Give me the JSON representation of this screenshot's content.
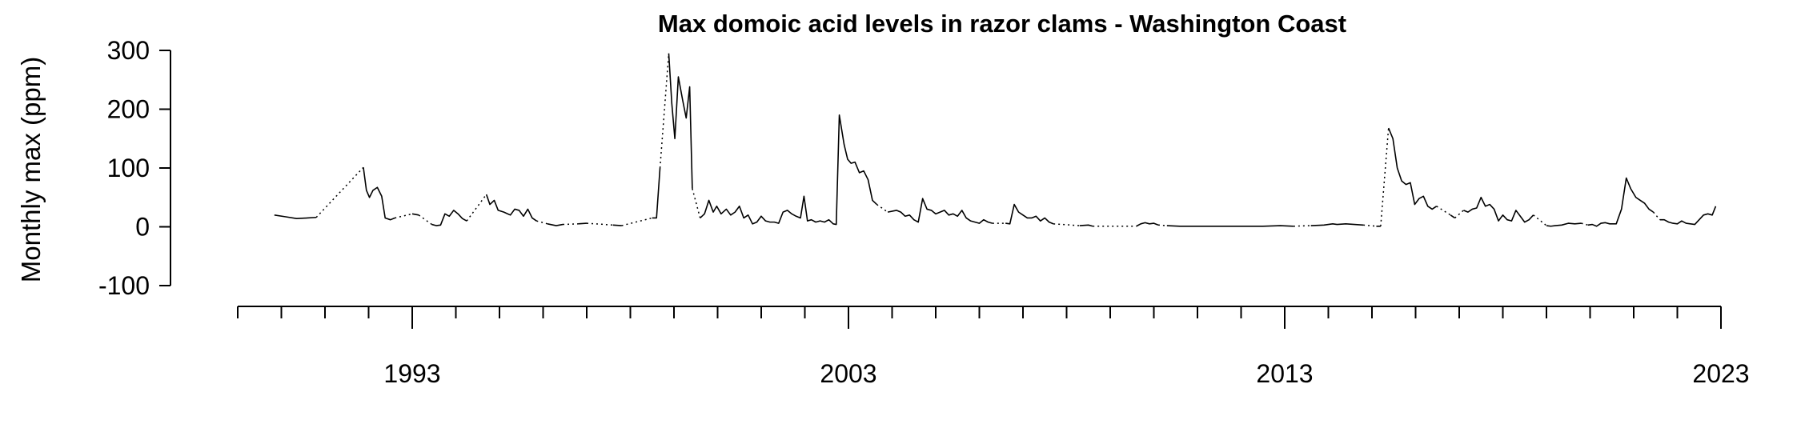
{
  "chart_data": {
    "type": "line",
    "title": "Max domoic acid levels in razor clams - Washington Coast",
    "y_label": "Monthly max (ppm)",
    "color": "#000000",
    "xlim": [
      1989,
      2023
    ],
    "xticks": [
      1993,
      2003,
      2013,
      2023
    ],
    "xminorticks": [
      1989,
      1990,
      1991,
      1992,
      1994,
      1995,
      1996,
      1997,
      1998,
      1999,
      2000,
      2001,
      2002,
      2004,
      2005,
      2006,
      2007,
      2008,
      2009,
      2010,
      2011,
      2012,
      2014,
      2015,
      2016,
      2017,
      2018,
      2019,
      2020,
      2021,
      2022
    ],
    "ylim": [
      -100,
      300
    ],
    "yticks": [
      -100,
      0,
      100,
      200,
      300
    ],
    "gap_style": "dotted",
    "x": [
      1989.84,
      1990.1,
      1990.35,
      1990.6,
      1990.8,
      null,
      1991.88,
      1991.95,
      1992.02,
      1992.1,
      1992.2,
      1992.3,
      1992.38,
      1992.5,
      1992.6,
      null,
      1993.0,
      1993.15,
      null,
      1993.45,
      1993.55,
      1993.65,
      1993.75,
      1993.85,
      1993.95,
      1994.05,
      1994.15,
      1994.25,
      null,
      1994.7,
      1994.78,
      1994.88,
      1994.97,
      1995.1,
      1995.25,
      1995.35,
      1995.45,
      1995.55,
      1995.65,
      1995.75,
      1995.85,
      null,
      1996.1,
      1996.3,
      1996.45,
      null,
      1996.8,
      1997.0,
      null,
      1997.6,
      1997.8,
      null,
      1998.5,
      1998.6,
      1998.68,
      null,
      1998.88,
      1998.95,
      1999.02,
      1999.1,
      1999.2,
      1999.28,
      1999.36,
      1999.42,
      null,
      1999.6,
      1999.7,
      1999.8,
      1999.9,
      1999.98,
      2000.08,
      2000.2,
      2000.3,
      2000.4,
      2000.5,
      2000.6,
      2000.7,
      2000.8,
      2000.9,
      2001.0,
      2001.1,
      2001.2,
      2001.3,
      2001.4,
      2001.5,
      2001.6,
      2001.7,
      2001.8,
      2001.9,
      2001.98,
      2002.06,
      2002.15,
      2002.25,
      2002.35,
      2002.45,
      2002.55,
      2002.65,
      2002.72,
      2002.79,
      2002.9,
      2002.98,
      2003.06,
      2003.15,
      2003.25,
      2003.35,
      2003.45,
      2003.55,
      2003.65,
      null,
      2003.9,
      2004.1,
      2004.2,
      2004.3,
      2004.4,
      2004.5,
      2004.6,
      2004.7,
      2004.8,
      2004.9,
      2005.0,
      2005.1,
      2005.2,
      2005.3,
      2005.4,
      2005.5,
      2005.6,
      2005.7,
      2005.8,
      2005.9,
      2006.0,
      2006.1,
      2006.2,
      2006.3,
      null,
      2006.6,
      2006.7,
      2006.8,
      2006.9,
      2007.0,
      2007.1,
      2007.2,
      2007.3,
      2007.4,
      2007.5,
      2007.6,
      2007.7,
      null,
      2008.3,
      2008.5,
      2008.6,
      null,
      2009.6,
      2009.7,
      2009.8,
      2009.9,
      2010.0,
      2010.1,
      null,
      2010.3,
      2010.6,
      2011.0,
      2011.5,
      2012.0,
      2012.5,
      2012.9,
      2013.2,
      null,
      2013.6,
      2013.9,
      2014.1,
      2014.2,
      2014.4,
      2014.6,
      2014.8,
      null,
      2015.1,
      2015.2,
      null,
      2015.38,
      2015.48,
      2015.58,
      2015.68,
      2015.78,
      2015.88,
      2015.98,
      2016.08,
      2016.18,
      2016.28,
      2016.38,
      2016.48,
      null,
      2016.8,
      2016.9,
      null,
      2017.1,
      2017.2,
      2017.3,
      2017.4,
      2017.5,
      2017.6,
      2017.7,
      2017.8,
      2017.9,
      2018.0,
      2018.1,
      2018.2,
      2018.3,
      2018.4,
      2018.5,
      2018.6,
      2018.7,
      null,
      2019.0,
      2019.1,
      2019.2,
      2019.35,
      2019.5,
      2019.65,
      2019.8,
      null,
      2019.95,
      2020.05,
      2020.15,
      2020.25,
      2020.35,
      2020.45,
      2020.6,
      2020.72,
      2020.83,
      2020.93,
      2021.05,
      2021.15,
      2021.25,
      2021.35,
      2021.45,
      null,
      2021.6,
      2021.7,
      2021.8,
      2021.9,
      2022.0,
      2022.1,
      2022.2,
      2022.3,
      2022.4,
      2022.5,
      2022.6,
      2022.7,
      2022.8,
      2022.88
    ],
    "values": [
      20,
      17,
      14,
      15,
      16,
      null,
      101,
      62,
      50,
      62,
      67,
      52,
      15,
      12,
      15,
      null,
      22,
      20,
      null,
      4,
      2,
      3,
      22,
      18,
      28,
      22,
      14,
      10,
      null,
      55,
      38,
      45,
      28,
      25,
      20,
      30,
      28,
      18,
      30,
      15,
      10,
      null,
      5,
      2,
      4,
      null,
      5,
      6,
      null,
      3,
      2,
      null,
      15,
      15,
      100,
      null,
      295,
      210,
      150,
      255,
      215,
      185,
      238,
      65,
      null,
      15,
      22,
      45,
      25,
      35,
      22,
      30,
      20,
      25,
      35,
      15,
      20,
      5,
      8,
      18,
      10,
      8,
      8,
      6,
      25,
      28,
      22,
      18,
      15,
      52,
      10,
      12,
      8,
      10,
      8,
      12,
      5,
      4,
      190,
      140,
      115,
      108,
      110,
      92,
      95,
      80,
      45,
      38,
      null,
      25,
      28,
      25,
      18,
      20,
      12,
      8,
      48,
      30,
      28,
      22,
      25,
      28,
      20,
      22,
      18,
      28,
      15,
      10,
      8,
      6,
      12,
      8,
      6,
      null,
      6,
      5,
      38,
      25,
      20,
      15,
      15,
      18,
      10,
      15,
      8,
      5,
      null,
      2,
      3,
      1,
      null,
      1,
      5,
      7,
      5,
      6,
      3,
      null,
      2,
      1,
      1,
      1,
      1,
      1,
      2,
      1,
      null,
      2,
      3,
      5,
      4,
      5,
      4,
      3,
      null,
      1,
      1,
      null,
      168,
      150,
      100,
      78,
      72,
      75,
      38,
      48,
      52,
      35,
      30,
      35,
      null,
      20,
      15,
      null,
      28,
      25,
      30,
      32,
      50,
      35,
      38,
      30,
      10,
      20,
      12,
      10,
      28,
      18,
      8,
      12,
      20,
      null,
      2,
      1,
      2,
      3,
      6,
      5,
      6,
      null,
      3,
      4,
      1,
      6,
      7,
      5,
      5,
      30,
      83,
      65,
      50,
      45,
      40,
      30,
      25,
      null,
      12,
      12,
      8,
      6,
      5,
      10,
      6,
      5,
      4,
      12,
      20,
      22,
      20,
      35
    ]
  }
}
